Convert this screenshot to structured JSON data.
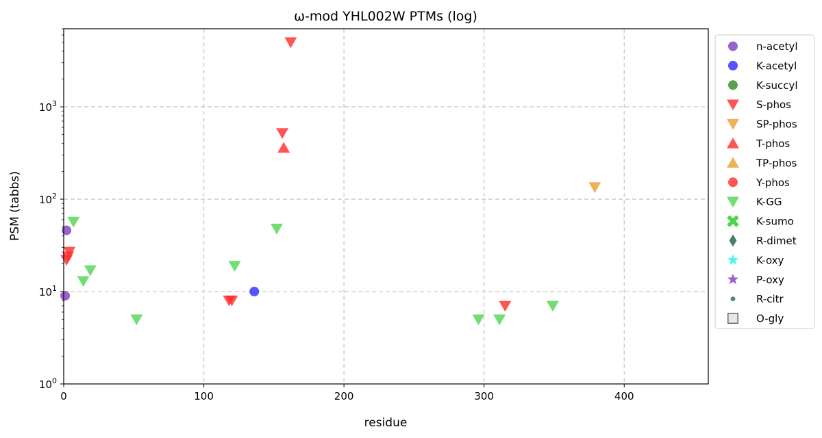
{
  "chart_data": {
    "type": "scatter",
    "title": "ω-mod YHL002W PTMs (log)",
    "xlabel": "residue",
    "ylabel": "PSM (tabbs)",
    "xlim": [
      0,
      460
    ],
    "ylim": [
      1,
      7000
    ],
    "yscale": "log",
    "grid": true,
    "legend_position": "outside-right",
    "x_ticks": [
      0,
      100,
      200,
      300,
      400
    ],
    "y_ticks": [
      {
        "value": 1,
        "base": "10",
        "exp": "0"
      },
      {
        "value": 10,
        "base": "10",
        "exp": "1"
      },
      {
        "value": 100,
        "base": "10",
        "exp": "2"
      },
      {
        "value": 1000,
        "base": "10",
        "exp": "3"
      }
    ],
    "series": [
      {
        "name": "n-acetyl",
        "marker": "circle",
        "color": "#7f3fbf",
        "points": [
          {
            "x": 2,
            "y": 46
          },
          {
            "x": 1,
            "y": 9
          }
        ]
      },
      {
        "name": "K-acetyl",
        "marker": "circle",
        "color": "#2b2bff",
        "points": [
          {
            "x": 136,
            "y": 10
          }
        ]
      },
      {
        "name": "K-succyl",
        "marker": "circle",
        "color": "#2e8b22",
        "points": []
      },
      {
        "name": "S-phos",
        "marker": "triangle-down",
        "color": "#ff2b2b",
        "points": [
          {
            "x": 162,
            "y": 5000
          },
          {
            "x": 156,
            "y": 520
          },
          {
            "x": 4,
            "y": 27
          },
          {
            "x": 3,
            "y": 24
          },
          {
            "x": 2,
            "y": 22
          },
          {
            "x": 118,
            "y": 8
          },
          {
            "x": 120,
            "y": 8
          },
          {
            "x": 315,
            "y": 7
          }
        ]
      },
      {
        "name": "SP-phos",
        "marker": "triangle-down",
        "color": "#e8a030",
        "points": [
          {
            "x": 379,
            "y": 135
          }
        ]
      },
      {
        "name": "T-phos",
        "marker": "triangle-up",
        "color": "#ff2b2b",
        "points": [
          {
            "x": 157,
            "y": 360
          }
        ]
      },
      {
        "name": "TP-phos",
        "marker": "triangle-up",
        "color": "#e8a030",
        "points": []
      },
      {
        "name": "Y-phos",
        "marker": "circle",
        "color": "#ff2b2b",
        "points": []
      },
      {
        "name": "K-GG",
        "marker": "triangle-down",
        "color": "#4fd44f",
        "points": [
          {
            "x": 7,
            "y": 57
          },
          {
            "x": 152,
            "y": 48
          },
          {
            "x": 122,
            "y": 19
          },
          {
            "x": 19,
            "y": 17
          },
          {
            "x": 14,
            "y": 13
          },
          {
            "x": 52,
            "y": 5
          },
          {
            "x": 296,
            "y": 5
          },
          {
            "x": 311,
            "y": 5
          },
          {
            "x": 349,
            "y": 7
          }
        ]
      },
      {
        "name": "K-sumo",
        "marker": "x",
        "color": "#4fd44f",
        "points": []
      },
      {
        "name": "R-dimet",
        "marker": "diamond",
        "color": "#1f5f3f",
        "points": []
      },
      {
        "name": "K-oxy",
        "marker": "star",
        "color": "#22f0f0",
        "points": []
      },
      {
        "name": "P-oxy",
        "marker": "star",
        "color": "#7f3fbf",
        "points": []
      },
      {
        "name": "R-citr",
        "marker": "small-circle",
        "color": "#2e6b4a",
        "points": []
      },
      {
        "name": "O-gly",
        "marker": "square",
        "color": "#e8e8e8",
        "points": []
      }
    ]
  }
}
